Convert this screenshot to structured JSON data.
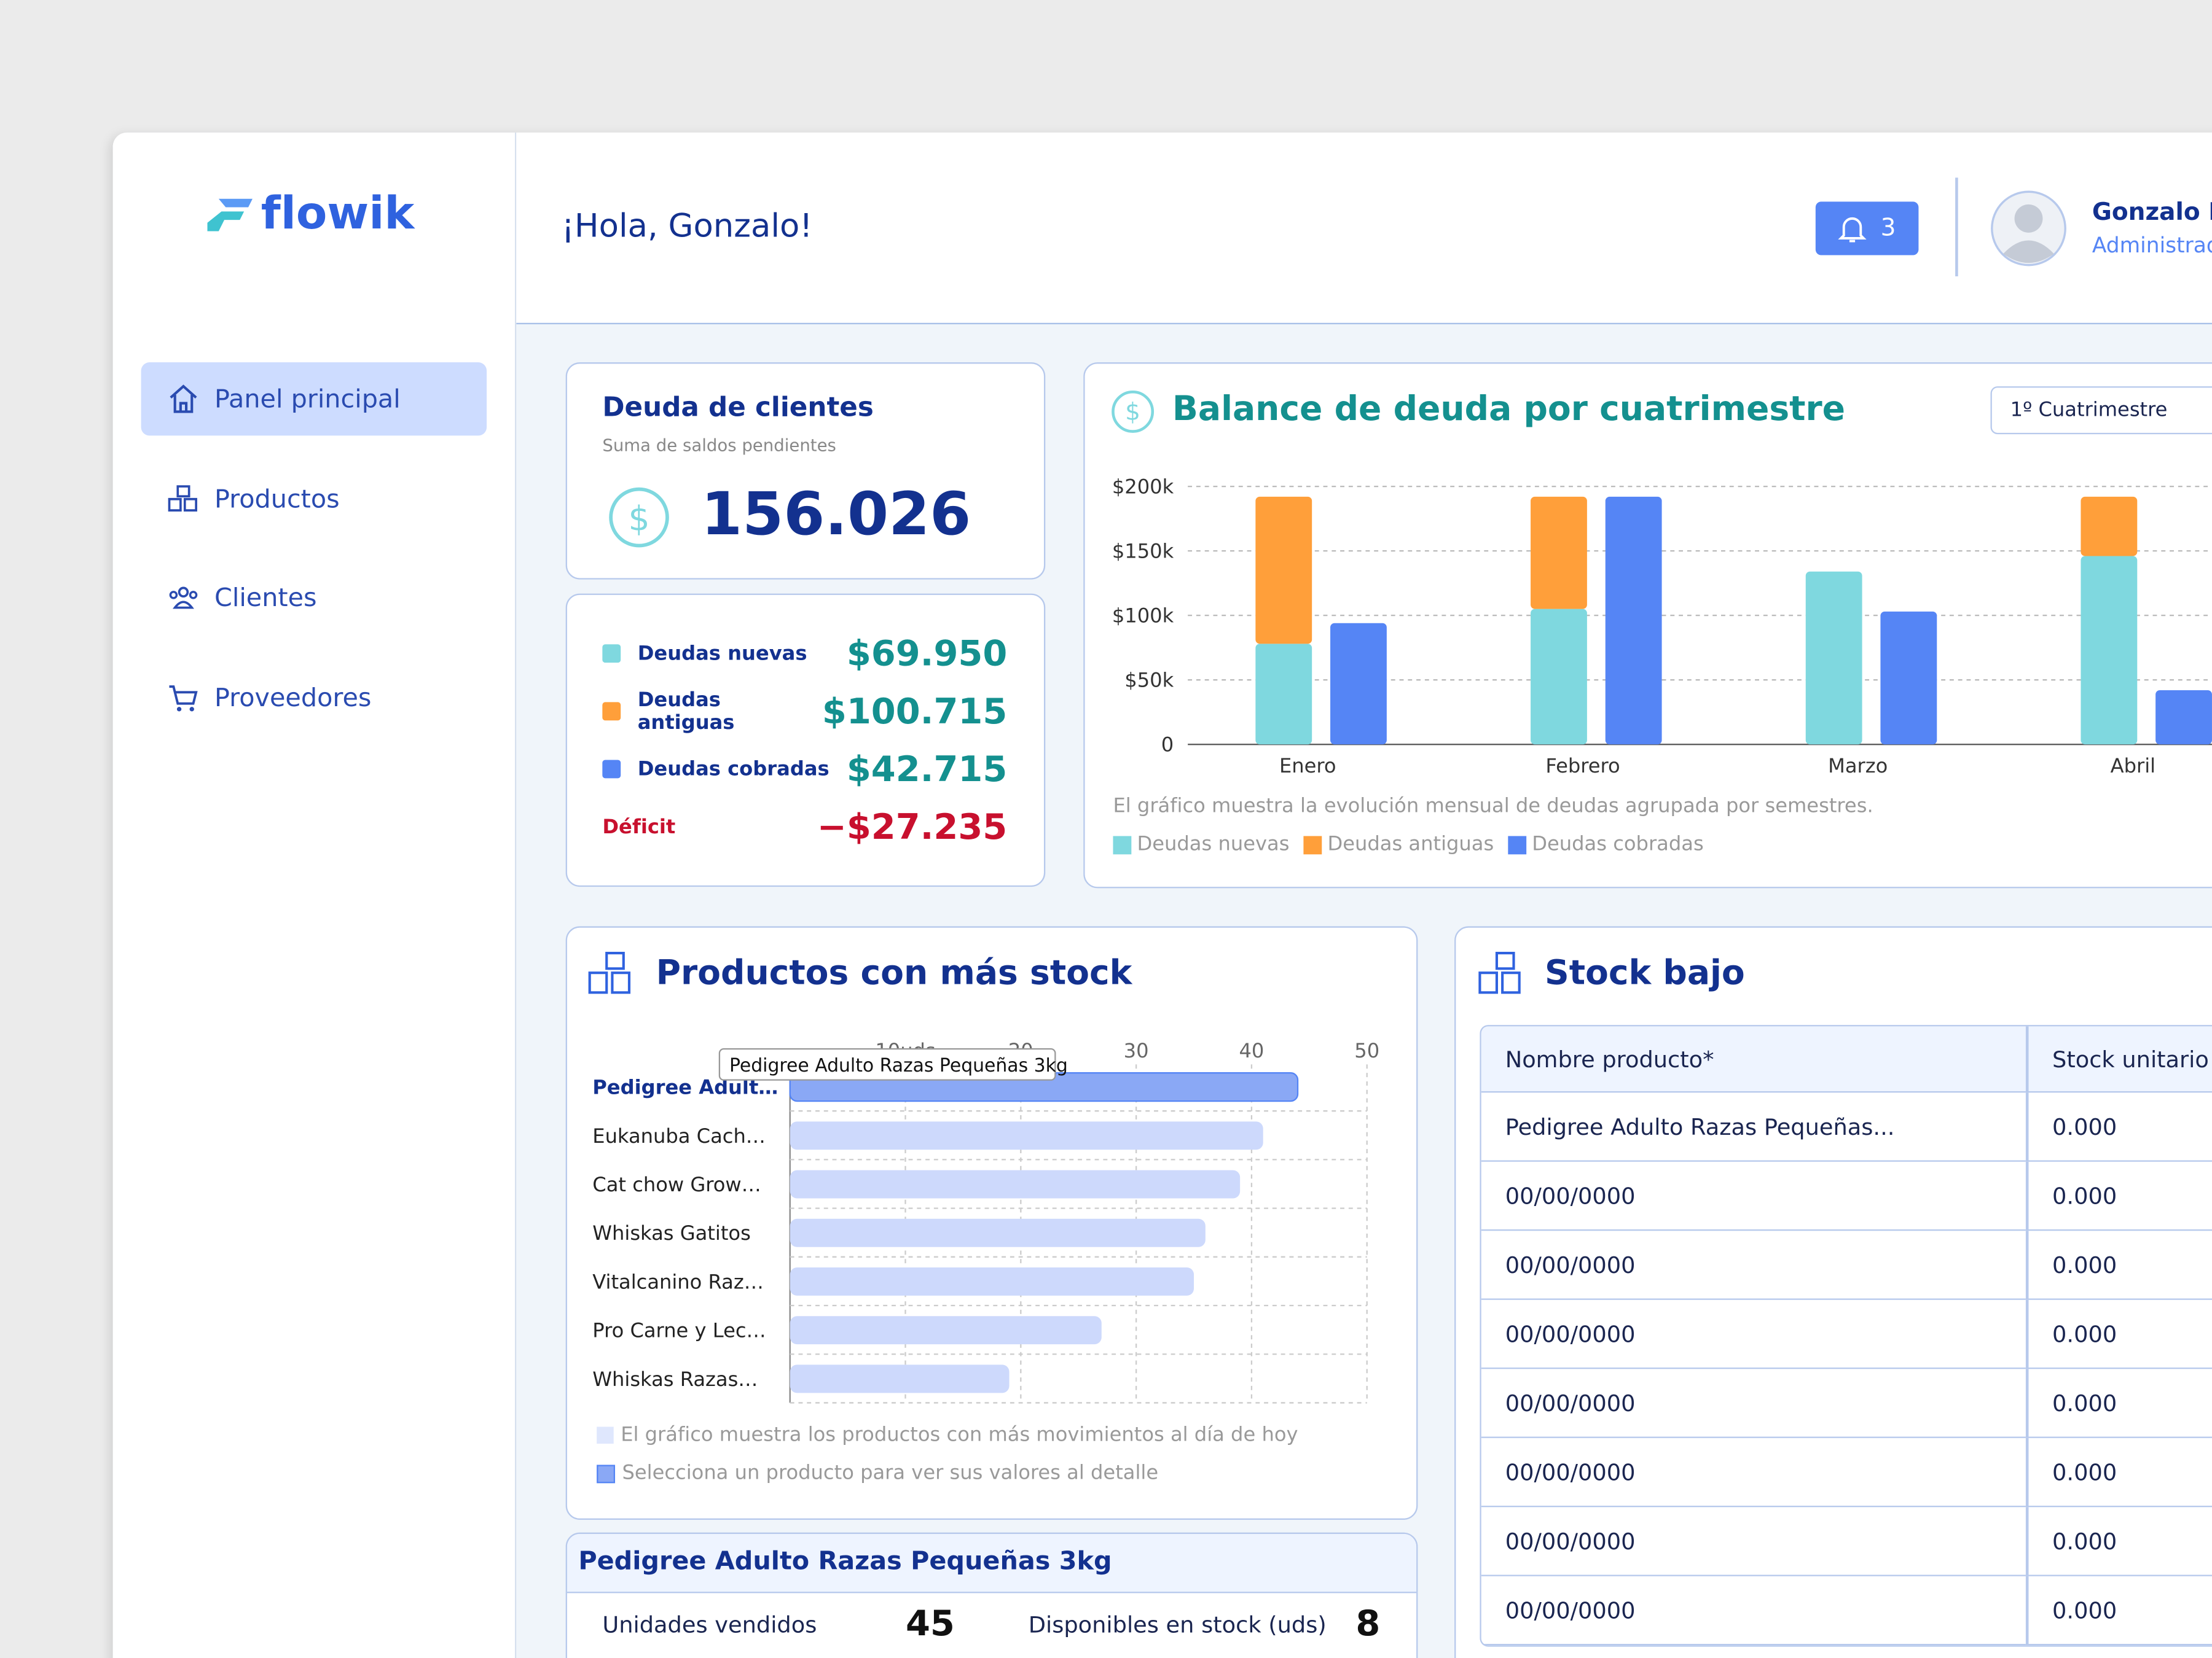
{
  "sidebar": {
    "logo": "flowik",
    "nav": [
      "Panel principal",
      "Productos",
      "Clientes",
      "Proveedores"
    ]
  },
  "header": {
    "greeting": "¡Hola, Gonzalo!",
    "notifications": 3,
    "user_name": "Gonzalo Ló",
    "user_role": "Administrad"
  },
  "debt_card": {
    "title": "Deuda de clientes",
    "subtitle": "Suma de saldos pendientes",
    "total": "156.026"
  },
  "breakdown": {
    "items": [
      {
        "label": "Deudas nuevas",
        "value": "$69.950",
        "color": "#7fd8df"
      },
      {
        "label": "Deudas antiguas",
        "value": "$100.715",
        "color": "#ff9f3a"
      },
      {
        "label": "Deudas cobradas",
        "value": "$42.715",
        "color": "#5585f5"
      }
    ],
    "deficit_label": "Déficit",
    "deficit_value": "−$27.235"
  },
  "balance_chart": {
    "type": "bar",
    "title": "Balance de deuda por cuatrimestre",
    "selector": "1º Cuatrimestre",
    "categories": [
      "Enero",
      "Febrero",
      "Marzo",
      "Abril"
    ],
    "series": [
      {
        "name": "Deudas nuevas",
        "color": "#7fd8df",
        "stack": "a",
        "values": [
          78000,
          105000,
          134000,
          146000
        ]
      },
      {
        "name": "Deudas antiguas",
        "color": "#ff9f3a",
        "stack": "a",
        "values": [
          114000,
          87000,
          0,
          46000
        ]
      },
      {
        "name": "Deudas cobradas",
        "color": "#5585f5",
        "stack": "b",
        "values": [
          94000,
          192000,
          103000,
          42000
        ]
      }
    ],
    "ylim": [
      0,
      200000
    ],
    "yticks": [
      {
        "value": 0,
        "label": "0"
      },
      {
        "value": 50000,
        "label": "$50k"
      },
      {
        "value": 100000,
        "label": "$100k"
      },
      {
        "value": 150000,
        "label": "$150k"
      },
      {
        "value": 200000,
        "label": "$200k"
      }
    ],
    "grid": true,
    "note": "El gráfico muestra la evolución mensual de deudas agrupada por semestres."
  },
  "stock_chart": {
    "type": "barh",
    "title": "Productos con más stock",
    "categories": [
      "Pedigree Adult…",
      "Eukanuba Cach…",
      "Cat chow Grow…",
      "Whiskas Gatitos",
      "Vitalcanino Raz…",
      "Pro Carne y Lec…",
      "Whiskas Razas…"
    ],
    "values": [
      44,
      41,
      39,
      36,
      35,
      27,
      19
    ],
    "color": "#cdd9fc",
    "highlight_color": "#8aa8f5",
    "xlim": [
      0,
      50
    ],
    "xticks": [
      {
        "value": 10,
        "label": "10uds"
      },
      20,
      30,
      40,
      50
    ],
    "grid": true,
    "tooltip": "Pedigree Adulto Razas Pequeñas 3kg",
    "notes": [
      "El gráfico muestra los productos con más movimientos al día de hoy",
      "Selecciona un producto para ver sus valores al detalle"
    ]
  },
  "detail": {
    "title": "Pedigree Adulto Razas Pequeñas 3kg",
    "sold_label": "Unidades vendidos",
    "sold": 45,
    "stock_label": "Disponibles en stock (uds)",
    "stock": 8
  },
  "low_stock": {
    "title": "Stock bajo",
    "headers": [
      "Nombre producto*",
      "Stock unitario"
    ],
    "rows": [
      [
        "Pedigree Adulto Razas Pequeñas...",
        "0.000"
      ],
      [
        "00/00/0000",
        "0.000"
      ],
      [
        "00/00/0000",
        "0.000"
      ],
      [
        "00/00/0000",
        "0.000"
      ],
      [
        "00/00/0000",
        "0.000"
      ],
      [
        "00/00/0000",
        "0.000"
      ],
      [
        "00/00/0000",
        "0.000"
      ],
      [
        "00/00/0000",
        "0.000"
      ]
    ]
  }
}
